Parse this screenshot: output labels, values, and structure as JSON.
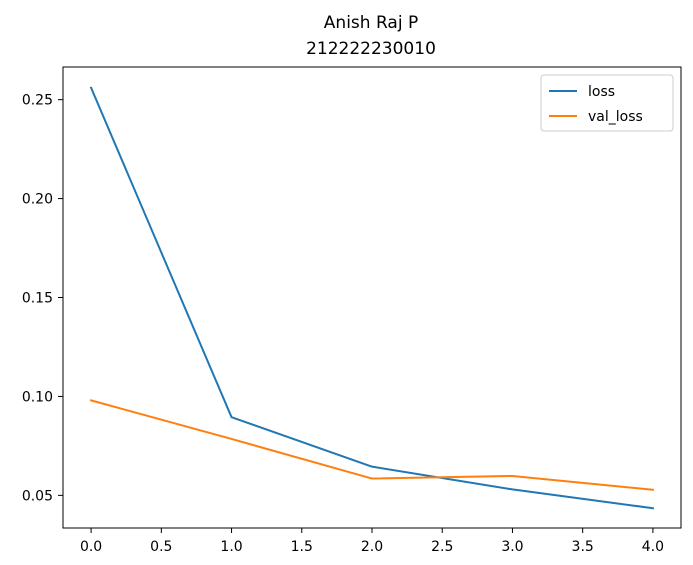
{
  "chart_data": {
    "type": "line",
    "title_lines": [
      "Anish Raj P",
      "212222230010"
    ],
    "xlabel": "",
    "ylabel": "",
    "x": [
      0,
      1,
      2,
      3,
      4
    ],
    "xlim": [
      -0.2,
      4.2
    ],
    "ylim": [
      0.0335,
      0.2665
    ],
    "x_ticks": [
      0.0,
      0.5,
      1.0,
      1.5,
      2.0,
      2.5,
      3.0,
      3.5,
      4.0
    ],
    "x_tick_labels": [
      "0.0",
      "0.5",
      "1.0",
      "1.5",
      "2.0",
      "2.5",
      "3.0",
      "3.5",
      "4.0"
    ],
    "y_ticks": [
      0.05,
      0.1,
      0.15,
      0.2,
      0.25
    ],
    "y_tick_labels": [
      "0.05",
      "0.10",
      "0.15",
      "0.20",
      "0.25"
    ],
    "grid": false,
    "legend_position": "top-right",
    "series": [
      {
        "name": "loss",
        "color": "#1f77b4",
        "values": [
          0.256,
          0.0895,
          0.0645,
          0.053,
          0.0435
        ]
      },
      {
        "name": "val_loss",
        "color": "#ff7f0e",
        "values": [
          0.098,
          0.0785,
          0.0585,
          0.0598,
          0.0528
        ]
      }
    ]
  }
}
